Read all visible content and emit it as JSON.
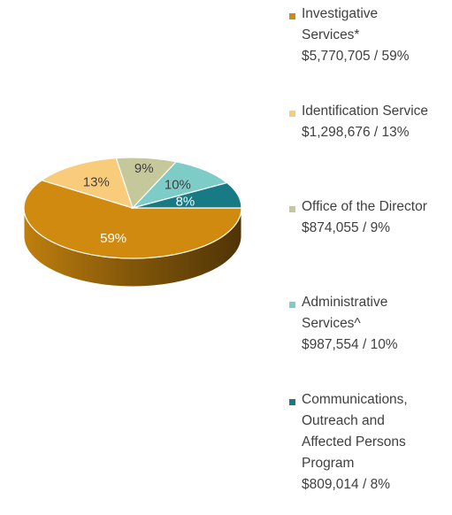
{
  "chart_data": {
    "type": "pie",
    "style": "3d-tilted",
    "start_angle_deg": 0,
    "direction": "clockwise",
    "slices": [
      {
        "label": "Investigative Services*",
        "value": 5770705,
        "percent": 59,
        "display_value": "$5,770,705 / 59%",
        "color": "#D08A0F",
        "text_color": "#ffffff"
      },
      {
        "label": "Identification Services",
        "value": 1298676,
        "percent": 13,
        "display_value": "$1,298,676 / 13%",
        "color": "#F8CC7A",
        "text_color": "#404040"
      },
      {
        "label": "Office of the Director",
        "value": 874055,
        "percent": 9,
        "display_value": "$874,055 / 9%",
        "color": "#C4C89A",
        "text_color": "#404040"
      },
      {
        "label": "Administrative Services^",
        "value": 987554,
        "percent": 10,
        "display_value": "$987,554 / 10%",
        "color": "#7ECCC8",
        "text_color": "#404040"
      },
      {
        "label": "Communications, Outreach and Affected Persons Program",
        "value": 809014,
        "percent": 8,
        "display_value": "$809,014 / 8%",
        "color": "#177A84",
        "text_color": "#ffffff"
      }
    ],
    "data_labels": [
      "59%",
      "13%",
      "9%",
      "10%",
      "8%"
    ],
    "legend": {
      "position": "right",
      "entries": [
        {
          "label_lines": [
            "Investigative",
            "Services*"
          ],
          "value_line": "$5,770,705 / 59%"
        },
        {
          "label_lines": [
            "Identification Service"
          ],
          "value_line": "$1,298,676 / 13%"
        },
        {
          "label_lines": [
            "Office of the Director"
          ],
          "value_line": "$874,055 / 9%"
        },
        {
          "label_lines": [
            "Administrative",
            "Services^"
          ],
          "value_line": "$987,554 / 10%"
        },
        {
          "label_lines": [
            "Communications,",
            "Outreach and",
            "Affected Persons",
            "Program"
          ],
          "value_line": "$809,014 / 8%"
        }
      ]
    }
  }
}
